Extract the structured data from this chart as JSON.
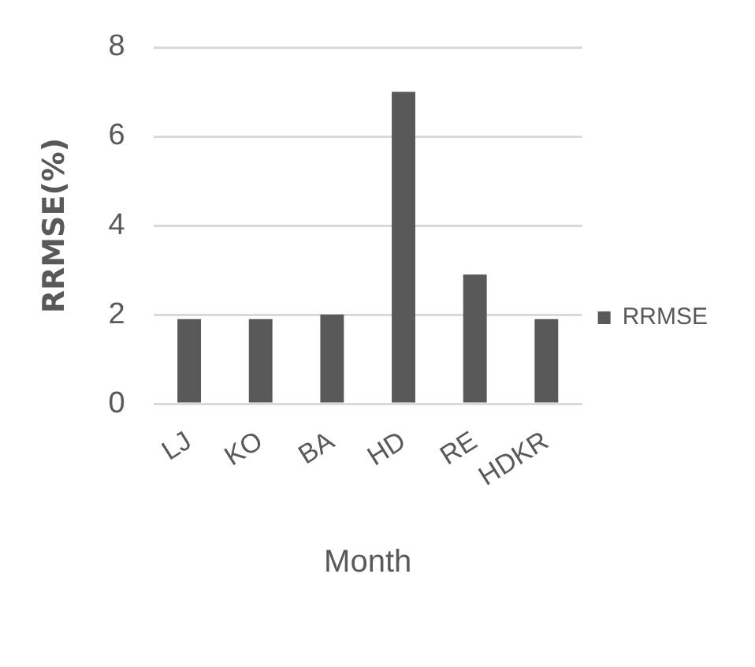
{
  "chart_data": {
    "type": "bar",
    "xlabel": "Month",
    "ylabel": "RRMSE(%)",
    "categories": [
      "LJ",
      "KO",
      "BA",
      "HD",
      "RE",
      "HDKR"
    ],
    "series": [
      {
        "name": "RRMSE",
        "color": "#595959",
        "values": [
          1.9,
          1.9,
          2.0,
          7.0,
          2.9,
          1.9
        ]
      }
    ],
    "ylim": [
      0,
      8
    ],
    "yticks": [
      0,
      2,
      4,
      6,
      8
    ],
    "grid": "y",
    "legend": "right"
  }
}
